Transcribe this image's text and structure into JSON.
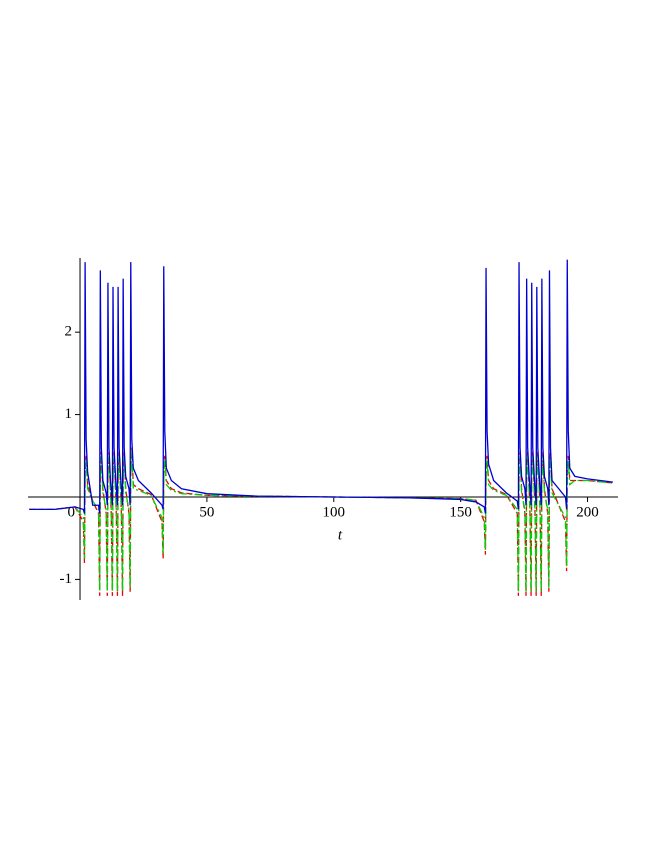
{
  "chart_data": {
    "type": "line",
    "x_label": "t",
    "x": [
      -20,
      -10,
      -2,
      1.3,
      1.75,
      2,
      2.4,
      3,
      5,
      7.3,
      7.75,
      8,
      8.4,
      9,
      10.3,
      10.75,
      11,
      11.4,
      12,
      12.3,
      12.75,
      13,
      13.4,
      14,
      14.3,
      14.75,
      15,
      15.4,
      16,
      16.3,
      16.75,
      17,
      17.4,
      18,
      19.3,
      19.75,
      20,
      20.4,
      21,
      23,
      28,
      32.3,
      32.75,
      33,
      33.4,
      34,
      36,
      40,
      50,
      70,
      100,
      130,
      150,
      156,
      159.3,
      159.75,
      160,
      160.4,
      161,
      163,
      168,
      172.3,
      172.75,
      173,
      173.4,
      174,
      175.3,
      175.75,
      176,
      176.4,
      177,
      177.3,
      177.75,
      178,
      178.4,
      179,
      179.3,
      179.75,
      180,
      180.4,
      181,
      181.3,
      181.75,
      182,
      182.4,
      183,
      184.3,
      184.75,
      185,
      185.4,
      186,
      191.3,
      191.75,
      192,
      192.4,
      193,
      195,
      200,
      210
    ],
    "series": [
      {
        "color": "#e8000b",
        "dash": "6,3",
        "values": [
          -0.15,
          -0.15,
          -0.12,
          -0.3,
          -0.8,
          0.3,
          0.5,
          0.15,
          -0.05,
          -0.2,
          -1.2,
          0.3,
          0.55,
          0.1,
          -0.2,
          -1.2,
          0.3,
          0.55,
          0.1,
          -0.2,
          -1.2,
          0.3,
          0.55,
          0.1,
          -0.2,
          -1.2,
          0.3,
          0.55,
          0.1,
          -0.2,
          -1.2,
          0.3,
          0.55,
          0.1,
          -0.2,
          -1.15,
          0.3,
          0.6,
          0.15,
          0.1,
          0.03,
          -0.3,
          -0.75,
          0.3,
          0.5,
          0.2,
          0.1,
          0.05,
          0.02,
          0.01,
          0,
          -0.01,
          -0.02,
          -0.04,
          -0.3,
          -0.7,
          0.3,
          0.5,
          0.2,
          0.1,
          0.03,
          -0.2,
          -1.2,
          0.3,
          0.55,
          0.1,
          -0.2,
          -1.2,
          0.3,
          0.55,
          0.1,
          -0.2,
          -1.2,
          0.3,
          0.55,
          0.1,
          -0.2,
          -1.2,
          0.3,
          0.55,
          0.1,
          -0.2,
          -1.2,
          0.3,
          0.55,
          0.1,
          -0.2,
          -1.15,
          0.3,
          0.55,
          0.1,
          -0.3,
          -0.9,
          0.3,
          0.5,
          0.2,
          0.2,
          0.2,
          0.17
        ]
      },
      {
        "color": "#00d200",
        "dash": "8,3,2,3",
        "values": [
          -0.15,
          -0.15,
          -0.12,
          -0.25,
          -0.75,
          0.2,
          0.45,
          0.1,
          -0.05,
          -0.15,
          -1.15,
          0.2,
          0.5,
          0.05,
          -0.15,
          -1.15,
          0.2,
          0.5,
          0.05,
          -0.15,
          -1.15,
          0.2,
          0.5,
          0.05,
          -0.15,
          -1.15,
          0.2,
          0.5,
          0.05,
          -0.15,
          -1.15,
          0.2,
          0.5,
          0.05,
          -0.15,
          -1.1,
          0.2,
          0.55,
          0.1,
          0.08,
          0.02,
          -0.25,
          -0.7,
          0.2,
          0.45,
          0.15,
          0.08,
          0.04,
          0.02,
          0.01,
          0,
          -0.01,
          -0.02,
          -0.04,
          -0.25,
          -0.65,
          0.2,
          0.45,
          0.15,
          0.08,
          0.02,
          -0.15,
          -1.15,
          0.2,
          0.5,
          0.05,
          -0.15,
          -1.15,
          0.2,
          0.5,
          0.05,
          -0.15,
          -1.15,
          0.2,
          0.5,
          0.05,
          -0.15,
          -1.15,
          0.2,
          0.5,
          0.05,
          -0.15,
          -1.15,
          0.2,
          0.5,
          0.05,
          -0.15,
          -1.1,
          0.2,
          0.5,
          0.05,
          -0.25,
          -0.85,
          0.2,
          0.45,
          0.15,
          0.2,
          0.2,
          0.17
        ]
      },
      {
        "color": "#0000d2",
        "dash": "none",
        "values": [
          -0.15,
          -0.15,
          -0.12,
          -0.15,
          -0.2,
          2.85,
          0.7,
          0.3,
          -0.1,
          -0.1,
          -0.2,
          2.75,
          0.6,
          0.2,
          0.05,
          -0.1,
          2.6,
          0.6,
          0.2,
          0.1,
          -0.1,
          2.55,
          0.6,
          0.25,
          0.1,
          -0.1,
          2.55,
          0.6,
          0.25,
          0.1,
          -0.1,
          2.65,
          0.6,
          0.25,
          0.1,
          -0.1,
          2.85,
          0.7,
          0.35,
          0.2,
          0.05,
          -0.1,
          -0.15,
          2.8,
          0.8,
          0.35,
          0.2,
          0.1,
          0.04,
          0.01,
          0,
          -0.01,
          -0.03,
          -0.06,
          -0.12,
          -0.2,
          2.78,
          0.8,
          0.4,
          0.2,
          0.05,
          -0.05,
          -0.15,
          2.85,
          0.6,
          0.25,
          0.1,
          -0.1,
          2.65,
          0.6,
          0.25,
          0.1,
          -0.1,
          2.6,
          0.6,
          0.25,
          0.1,
          -0.1,
          2.55,
          0.6,
          0.25,
          0.1,
          -0.1,
          2.65,
          0.6,
          0.25,
          0.1,
          -0.1,
          2.75,
          0.6,
          0.2,
          0,
          -0.15,
          2.88,
          0.8,
          0.35,
          0.25,
          0.22,
          0.18
        ]
      }
    ],
    "xlim": [
      -20.5,
      212
    ],
    "ylim": [
      -1.25,
      2.9
    ],
    "xticks": [
      0,
      50,
      100,
      150,
      200
    ],
    "yticks": [
      -1,
      1,
      2
    ]
  }
}
